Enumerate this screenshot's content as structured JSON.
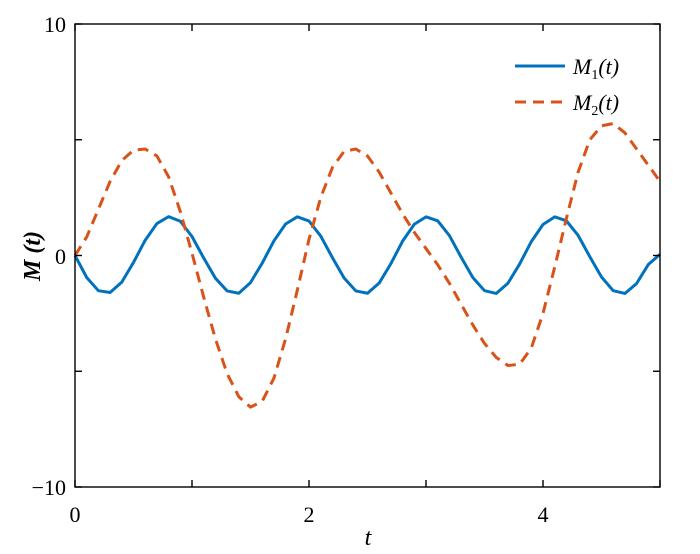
{
  "chart_data": {
    "type": "line",
    "xlabel": "t",
    "ylabel": "M (t)",
    "xlim": [
      0,
      5
    ],
    "ylim": [
      -10,
      10
    ],
    "x_ticks": [
      0,
      2,
      4
    ],
    "y_ticks": [
      -10,
      0,
      10
    ],
    "x_tick_labels": [
      "0",
      "2",
      "4"
    ],
    "y_tick_labels": [
      "−10",
      "0",
      "10"
    ],
    "grid": false,
    "legend_position": "top-right",
    "series": [
      {
        "name": "M1(t)",
        "name_main": "M",
        "name_sub": "1",
        "name_tail": "(t)",
        "color": "#0072BD",
        "style": "solid",
        "x": [
          0,
          0.1,
          0.2,
          0.3,
          0.4,
          0.5,
          0.6,
          0.7,
          0.8,
          0.9,
          1.0,
          1.1,
          1.2,
          1.3,
          1.4,
          1.5,
          1.6,
          1.7,
          1.8,
          1.9,
          2.0,
          2.1,
          2.2,
          2.3,
          2.4,
          2.5,
          2.6,
          2.7,
          2.8,
          2.9,
          3.0,
          3.1,
          3.2,
          3.3,
          3.4,
          3.5,
          3.6,
          3.7,
          3.8,
          3.9,
          4.0,
          4.1,
          4.2,
          4.3,
          4.4,
          4.5,
          4.6,
          4.7,
          4.8,
          4.9,
          5.0
        ],
        "y": [
          0.0,
          -0.95,
          -1.52,
          -1.6,
          -1.15,
          -0.3,
          0.66,
          1.38,
          1.68,
          1.48,
          0.82,
          -0.11,
          -0.98,
          -1.53,
          -1.63,
          -1.17,
          -0.33,
          0.63,
          1.36,
          1.67,
          1.49,
          0.84,
          -0.09,
          -0.97,
          -1.53,
          -1.63,
          -1.19,
          -0.35,
          0.62,
          1.35,
          1.67,
          1.5,
          0.86,
          -0.07,
          -0.95,
          -1.52,
          -1.64,
          -1.2,
          -0.37,
          0.6,
          1.34,
          1.67,
          1.5,
          0.87,
          -0.05,
          -0.93,
          -1.52,
          -1.64,
          -1.21,
          -0.39,
          0.05
        ]
      },
      {
        "name": "M2(t)",
        "name_main": "M",
        "name_sub": "2",
        "name_tail": "(t)",
        "color": "#D95319",
        "style": "dashed",
        "x": [
          0,
          0.1,
          0.2,
          0.3,
          0.4,
          0.5,
          0.6,
          0.7,
          0.8,
          0.9,
          1.0,
          1.1,
          1.2,
          1.3,
          1.4,
          1.5,
          1.6,
          1.7,
          1.8,
          1.9,
          2.0,
          2.1,
          2.2,
          2.3,
          2.4,
          2.5,
          2.6,
          2.7,
          2.8,
          2.9,
          3.0,
          3.1,
          3.2,
          3.3,
          3.4,
          3.5,
          3.6,
          3.7,
          3.8,
          3.9,
          4.0,
          4.1,
          4.2,
          4.3,
          4.4,
          4.5,
          4.6,
          4.7,
          4.8,
          4.9,
          5.0
        ],
        "y": [
          0.0,
          0.8,
          2.0,
          3.2,
          4.1,
          4.55,
          4.6,
          4.3,
          3.4,
          1.9,
          0.1,
          -1.8,
          -3.6,
          -5.1,
          -6.1,
          -6.55,
          -6.3,
          -5.3,
          -3.6,
          -1.5,
          0.7,
          2.5,
          3.8,
          4.5,
          4.6,
          4.3,
          3.6,
          2.7,
          1.8,
          1.0,
          0.3,
          -0.4,
          -1.2,
          -2.1,
          -3.0,
          -3.8,
          -4.4,
          -4.75,
          -4.7,
          -4.0,
          -2.5,
          -0.5,
          1.6,
          3.6,
          5.0,
          5.6,
          5.7,
          5.3,
          4.6,
          3.9,
          3.2
        ]
      }
    ]
  }
}
